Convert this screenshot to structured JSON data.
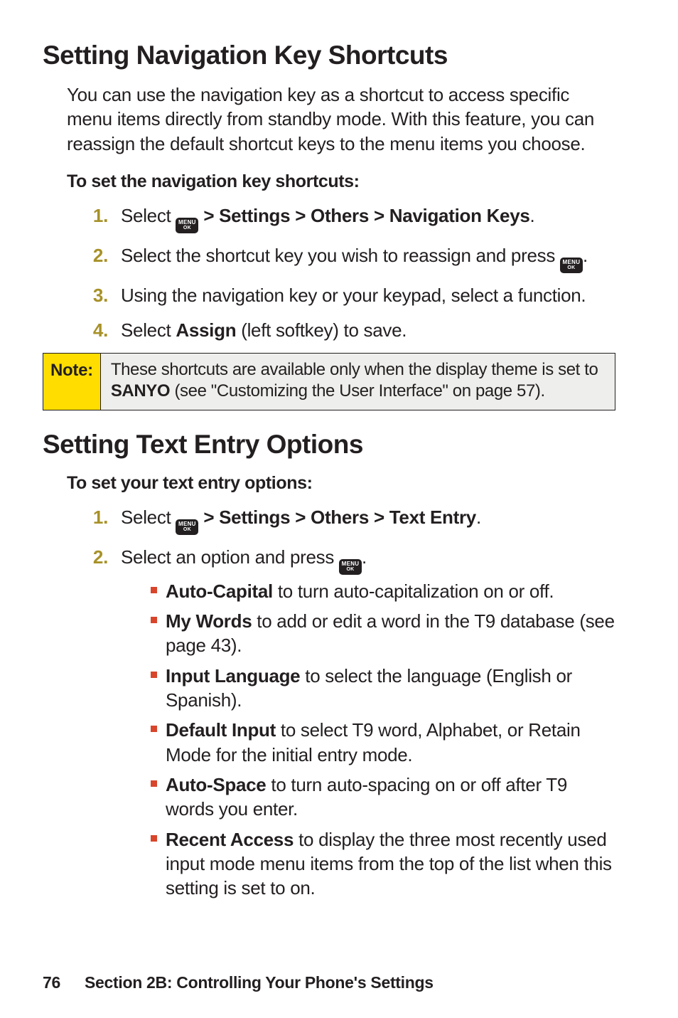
{
  "section1": {
    "heading": "Setting Navigation Key Shortcuts",
    "intro": "You can use the navigation key as a shortcut to access specific menu items directly from standby mode. With this feature, you can reassign the default shortcut keys to the menu items you choose.",
    "subhead": "To set the navigation key shortcuts:",
    "step1": {
      "num": "1.",
      "pre": "Select ",
      "post": " > Settings > Others > Navigation Keys",
      "end": "."
    },
    "step2": {
      "num": "2.",
      "pre": "Select the shortcut key you wish to reassign and press ",
      "end": "."
    },
    "step3": {
      "num": "3.",
      "text": "Using the navigation key or your keypad, select a function."
    },
    "step4": {
      "num": "4.",
      "pre": "Select ",
      "bold": "Assign",
      "post": " (left softkey) to save."
    }
  },
  "note": {
    "label": "Note:",
    "pre": "These shortcuts are available only when the display theme is set to ",
    "bold": "SANYO",
    "post": " (see \"Customizing the User Interface\" on page 57)."
  },
  "section2": {
    "heading": "Setting Text Entry Options",
    "subhead": "To set your text entry options:",
    "step1": {
      "num": "1.",
      "pre": "Select ",
      "post": " > Settings > Others > Text Entry",
      "end": "."
    },
    "step2": {
      "num": "2.",
      "pre": "Select an option and press ",
      "end": "."
    },
    "sub": [
      {
        "bold": "Auto-Capital",
        "text": " to turn auto-capitalization on or off."
      },
      {
        "bold": "My Words",
        "text": " to add or edit a word in the T9 database (see page 43)."
      },
      {
        "bold": "Input Language",
        "text": " to select the language (English or Spanish)."
      },
      {
        "bold": "Default Input",
        "text": " to select T9 word, Alphabet, or Retain Mode for the initial entry mode."
      },
      {
        "bold": "Auto-Space",
        "text": " to turn auto-spacing on or off after T9 words you enter."
      },
      {
        "bold": "Recent Access",
        "text": " to display the three most recently used input mode menu items from the top of the list when this setting is set to on."
      }
    ]
  },
  "footer": {
    "page": "76",
    "section": "Section 2B: Controlling Your Phone's Settings"
  },
  "menu_icon": {
    "line1": "MENU",
    "line2": "OK"
  }
}
